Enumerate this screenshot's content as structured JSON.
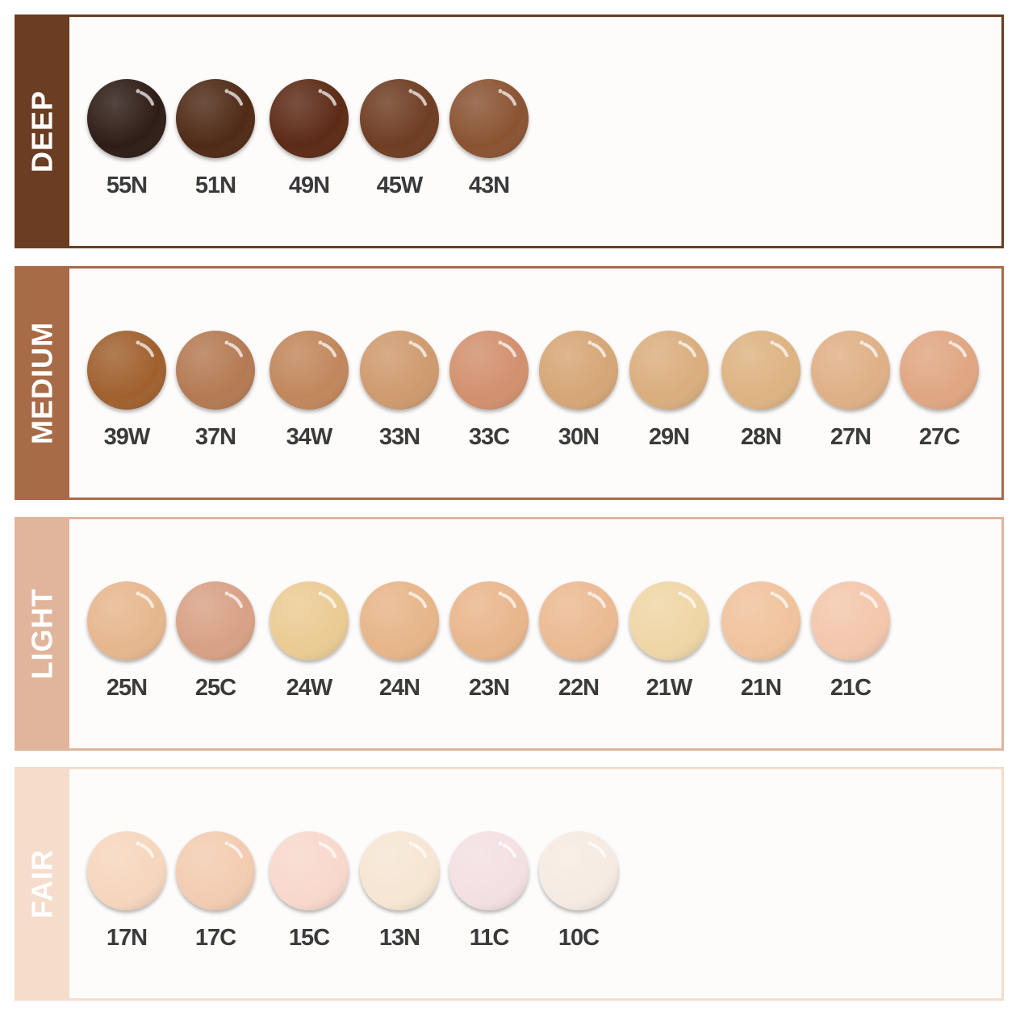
{
  "panels": [
    {
      "label": "DEEP",
      "color": "#6b3d22",
      "shades": [
        {
          "name": "55N",
          "color": "#2e1d17"
        },
        {
          "name": "51N",
          "color": "#4f2a18"
        },
        {
          "name": "49N",
          "color": "#5b2c16"
        },
        {
          "name": "45W",
          "color": "#6e3e20"
        },
        {
          "name": "43N",
          "color": "#8a5330"
        }
      ]
    },
    {
      "label": "MEDIUM",
      "color": "#a86b47",
      "shades": [
        {
          "name": "39W",
          "color": "#a0612f"
        },
        {
          "name": "37N",
          "color": "#b47a52"
        },
        {
          "name": "34W",
          "color": "#c1875b"
        },
        {
          "name": "33N",
          "color": "#cf9a6e"
        },
        {
          "name": "33C",
          "color": "#d2906e"
        },
        {
          "name": "30N",
          "color": "#d6a676"
        },
        {
          "name": "29N",
          "color": "#daae7e"
        },
        {
          "name": "28N",
          "color": "#ddb382"
        },
        {
          "name": "27N",
          "color": "#dfb086"
        },
        {
          "name": "27C",
          "color": "#e0a682"
        }
      ]
    },
    {
      "label": "LIGHT",
      "color": "#e0b59c",
      "shades": [
        {
          "name": "25N",
          "color": "#e6b78e"
        },
        {
          "name": "25C",
          "color": "#d8a185"
        },
        {
          "name": "24W",
          "color": "#ebcb93"
        },
        {
          "name": "24N",
          "color": "#e7b589"
        },
        {
          "name": "23N",
          "color": "#e9b68c"
        },
        {
          "name": "22N",
          "color": "#ebba92"
        },
        {
          "name": "21W",
          "color": "#efd6a6"
        },
        {
          "name": "21N",
          "color": "#f0c39d"
        },
        {
          "name": "21C",
          "color": "#f3c7ac"
        }
      ]
    },
    {
      "label": "FAIR",
      "color": "#f5dccb",
      "shades": [
        {
          "name": "17N",
          "color": "#f6d6bd"
        },
        {
          "name": "17C",
          "color": "#f3ccb1"
        },
        {
          "name": "15C",
          "color": "#f8d8cc"
        },
        {
          "name": "13N",
          "color": "#f6e6d3"
        },
        {
          "name": "11C",
          "color": "#f3e0e2"
        },
        {
          "name": "10C",
          "color": "#f6ebe2"
        }
      ]
    }
  ]
}
